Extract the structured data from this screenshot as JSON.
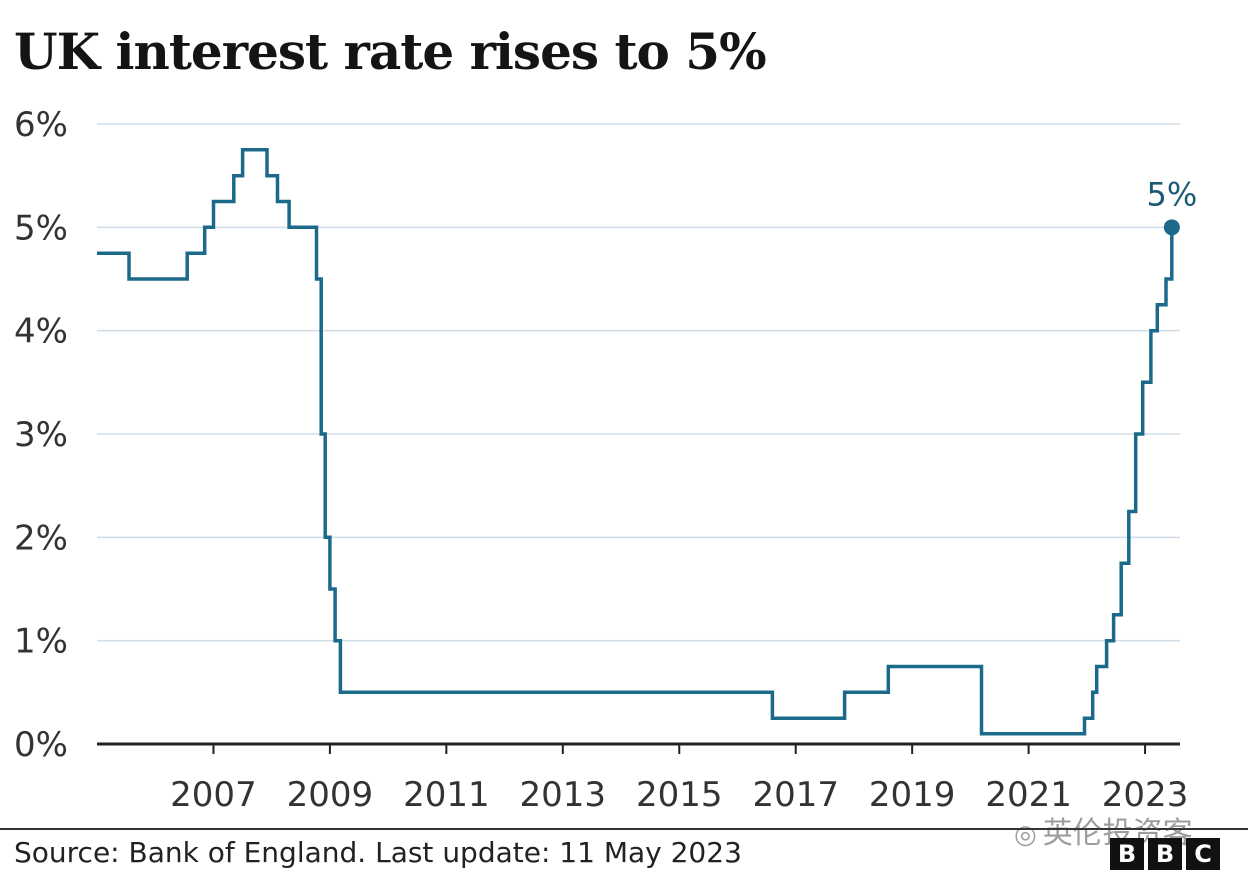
{
  "title": "UK interest rate rises to 5%",
  "source": "Source: Bank of England. Last update: 11 May 2023",
  "watermark": "英伦投资客",
  "logo": [
    "B",
    "B",
    "C"
  ],
  "colors": {
    "line": "#1b6a8a",
    "grid": "#d0dde6",
    "axis": "#222222",
    "tick_text": "#333333"
  },
  "chart_data": {
    "type": "line",
    "title": "UK interest rate rises to 5%",
    "step": true,
    "xlabel": "",
    "ylabel": "",
    "xlim": [
      2005.0,
      2023.6
    ],
    "ylim": [
      0,
      6
    ],
    "yticks": [
      0,
      1,
      2,
      3,
      4,
      5,
      6
    ],
    "ytick_labels": [
      "0%",
      "1%",
      "2%",
      "3%",
      "4%",
      "5%",
      "6%"
    ],
    "xticks": [
      2007,
      2009,
      2011,
      2013,
      2015,
      2017,
      2019,
      2021,
      2023
    ],
    "xtick_labels": [
      "2007",
      "2009",
      "2011",
      "2013",
      "2015",
      "2017",
      "2019",
      "2021",
      "2023"
    ],
    "grid": true,
    "series": [
      {
        "points": [
          [
            2005.0,
            4.75
          ],
          [
            2005.55,
            4.5
          ],
          [
            2006.55,
            4.75
          ],
          [
            2006.85,
            5.0
          ],
          [
            2007.0,
            5.25
          ],
          [
            2007.35,
            5.5
          ],
          [
            2007.5,
            5.75
          ],
          [
            2007.92,
            5.5
          ],
          [
            2008.1,
            5.25
          ],
          [
            2008.3,
            5.0
          ],
          [
            2008.77,
            4.5
          ],
          [
            2008.85,
            3.0
          ],
          [
            2008.92,
            2.0
          ],
          [
            2009.0,
            1.5
          ],
          [
            2009.09,
            1.0
          ],
          [
            2009.18,
            0.5
          ],
          [
            2016.6,
            0.25
          ],
          [
            2017.84,
            0.5
          ],
          [
            2018.59,
            0.75
          ],
          [
            2020.19,
            0.1
          ],
          [
            2021.96,
            0.25
          ],
          [
            2022.1,
            0.5
          ],
          [
            2022.17,
            0.75
          ],
          [
            2022.34,
            1.0
          ],
          [
            2022.46,
            1.25
          ],
          [
            2022.59,
            1.75
          ],
          [
            2022.72,
            2.25
          ],
          [
            2022.84,
            3.0
          ],
          [
            2022.96,
            3.5
          ],
          [
            2023.1,
            4.0
          ],
          [
            2023.21,
            4.25
          ],
          [
            2023.36,
            4.5
          ],
          [
            2023.46,
            5.0
          ]
        ]
      }
    ],
    "annotations": [
      {
        "x": 2023.46,
        "y": 5.0,
        "text": "5%"
      }
    ]
  }
}
